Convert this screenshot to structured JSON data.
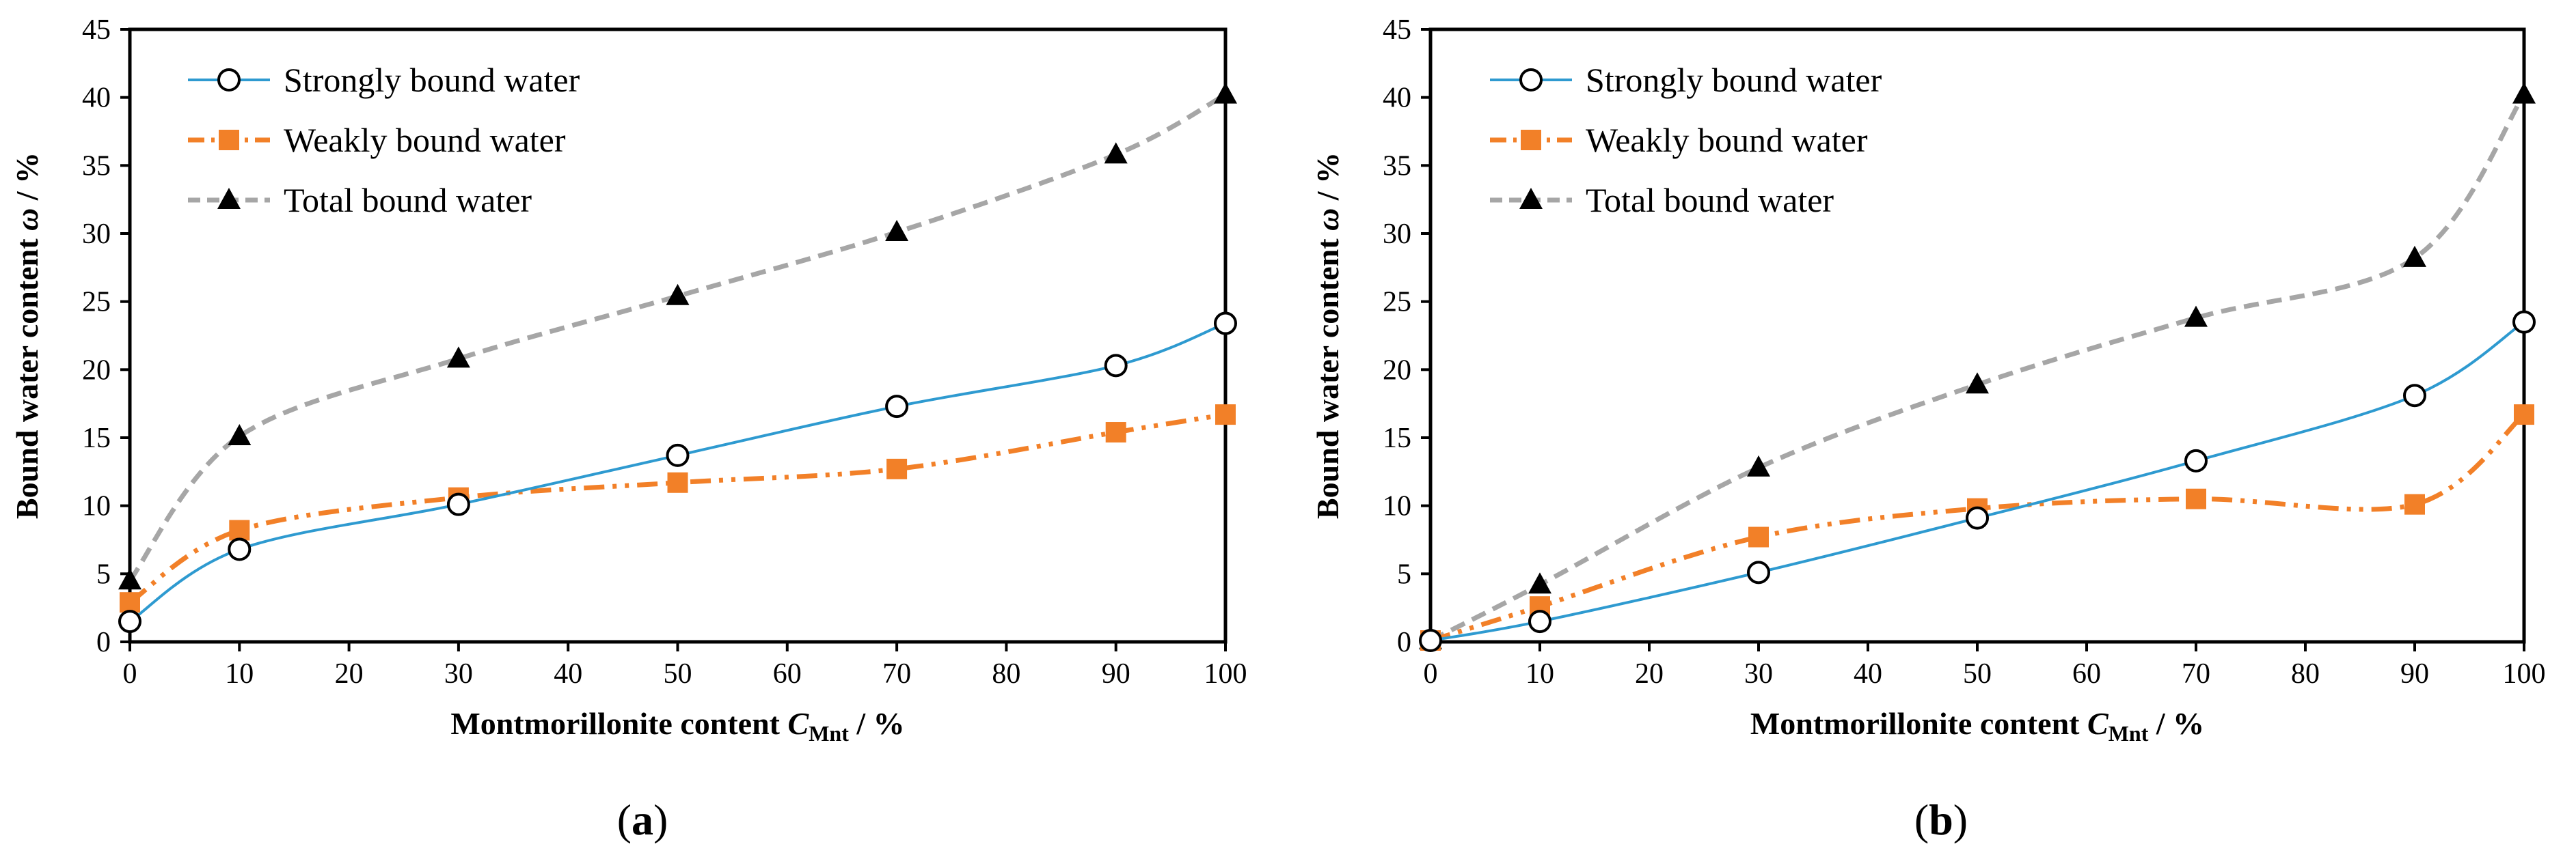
{
  "chart_data": [
    {
      "type": "line",
      "panel_label": "(a)",
      "xlabel": {
        "text": "Montmorillonite content ",
        "symbol": "C",
        "subscript": "Mnt",
        "unit": " / %"
      },
      "ylabel": {
        "text": "Bound water content ",
        "symbol": "ω",
        "unit": " / %"
      },
      "xlim": [
        0,
        100
      ],
      "ylim": [
        0,
        45
      ],
      "xticks": [
        0,
        10,
        20,
        30,
        40,
        50,
        60,
        70,
        80,
        90,
        100
      ],
      "yticks": [
        0,
        5,
        10,
        15,
        20,
        25,
        30,
        35,
        40,
        45
      ],
      "legend_position": "top-left",
      "series": [
        {
          "name": "Strongly bound water",
          "color": "#2E9AD0",
          "marker": "circle",
          "dash": "solid",
          "x": [
            0,
            10,
            30,
            50,
            70,
            90,
            100
          ],
          "y": [
            1.5,
            6.8,
            10.1,
            13.7,
            17.3,
            20.3,
            23.4
          ]
        },
        {
          "name": "Weakly bound water",
          "color": "#F28028",
          "marker": "square",
          "dash": "dashdotdot",
          "x": [
            0,
            10,
            30,
            50,
            70,
            90,
            100
          ],
          "y": [
            2.9,
            8.2,
            10.6,
            11.7,
            12.7,
            15.4,
            16.7
          ]
        },
        {
          "name": "Total bound water",
          "color": "#A6A6A6",
          "marker": "triangle",
          "dash": "dashed",
          "x": [
            0,
            10,
            30,
            50,
            70,
            90,
            100
          ],
          "y": [
            4.5,
            15.1,
            20.8,
            25.4,
            30.1,
            35.8,
            40.2
          ]
        }
      ]
    },
    {
      "type": "line",
      "panel_label": "(b)",
      "xlabel": {
        "text": "Montmorillonite content ",
        "symbol": "C",
        "subscript": "Mnt",
        "unit": " / %"
      },
      "ylabel": {
        "text": "Bound water content ",
        "symbol": "ω",
        "unit": " / %"
      },
      "xlim": [
        0,
        100
      ],
      "ylim": [
        0,
        45
      ],
      "xticks": [
        0,
        10,
        20,
        30,
        40,
        50,
        60,
        70,
        80,
        90,
        100
      ],
      "yticks": [
        0,
        5,
        10,
        15,
        20,
        25,
        30,
        35,
        40,
        45
      ],
      "legend_position": "top-left",
      "series": [
        {
          "name": "Strongly bound water",
          "color": "#2E9AD0",
          "marker": "circle",
          "dash": "solid",
          "x": [
            0,
            10,
            30,
            50,
            70,
            90,
            100
          ],
          "y": [
            0.1,
            1.5,
            5.1,
            9.1,
            13.3,
            18.1,
            23.5
          ]
        },
        {
          "name": "Weakly bound water",
          "color": "#F28028",
          "marker": "square",
          "dash": "dashdotdot",
          "x": [
            0,
            10,
            30,
            50,
            70,
            90,
            100
          ],
          "y": [
            0.1,
            2.6,
            7.7,
            9.8,
            10.5,
            10.1,
            16.7
          ]
        },
        {
          "name": "Total bound water",
          "color": "#A6A6A6",
          "marker": "triangle",
          "dash": "dashed",
          "x": [
            0,
            10,
            30,
            50,
            70,
            90,
            100
          ],
          "y": [
            0.1,
            4.2,
            12.8,
            18.9,
            23.8,
            28.2,
            40.2
          ]
        }
      ]
    }
  ]
}
